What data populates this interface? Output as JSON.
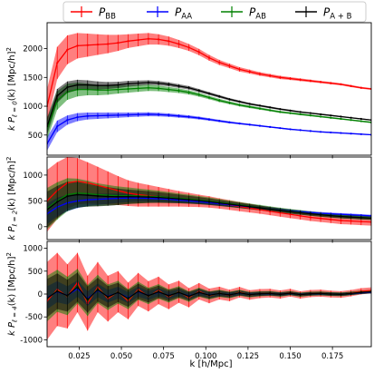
{
  "chart_data": [
    {
      "type": "line",
      "panel": "monopole",
      "ylabel_main": "k P",
      "ylabel_sub": "ℓ = 0",
      "ylabel_tail": "(k) [Mpc/h]",
      "ylabel_sup": "2",
      "ylim": [
        150,
        2450
      ],
      "yticks": [
        500,
        1000,
        1500,
        2000
      ],
      "xlim": [
        0.006,
        0.198
      ],
      "x": [
        0.006,
        0.012,
        0.018,
        0.024,
        0.03,
        0.036,
        0.042,
        0.048,
        0.054,
        0.06,
        0.066,
        0.072,
        0.078,
        0.084,
        0.09,
        0.096,
        0.102,
        0.108,
        0.114,
        0.12,
        0.126,
        0.132,
        0.138,
        0.144,
        0.15,
        0.156,
        0.162,
        0.168,
        0.174,
        0.18,
        0.186,
        0.192,
        0.198
      ],
      "series": [
        {
          "name": "P_BB",
          "color": "#ff0000",
          "values": [
            1000,
            1750,
            1980,
            2050,
            2060,
            2070,
            2080,
            2100,
            2130,
            2150,
            2170,
            2160,
            2130,
            2080,
            2020,
            1940,
            1840,
            1760,
            1700,
            1640,
            1600,
            1560,
            1530,
            1500,
            1480,
            1460,
            1440,
            1420,
            1400,
            1380,
            1350,
            1320,
            1300
          ],
          "err": [
            300,
            280,
            250,
            220,
            200,
            180,
            160,
            140,
            120,
            110,
            100,
            90,
            80,
            70,
            60,
            55,
            50,
            45,
            40,
            38,
            35,
            32,
            30,
            28,
            25,
            24,
            22,
            20,
            20,
            18,
            18,
            16,
            16
          ]
        },
        {
          "name": "P_AA",
          "color": "#0000ff",
          "values": [
            350,
            650,
            760,
            810,
            830,
            835,
            840,
            845,
            850,
            855,
            860,
            855,
            845,
            830,
            815,
            795,
            770,
            745,
            720,
            700,
            680,
            660,
            640,
            620,
            600,
            585,
            570,
            555,
            545,
            535,
            525,
            515,
            505
          ],
          "err": [
            120,
            100,
            80,
            70,
            60,
            55,
            50,
            45,
            40,
            38,
            35,
            32,
            30,
            28,
            26,
            24,
            22,
            20,
            18,
            16,
            15,
            14,
            13,
            12,
            11,
            10,
            10,
            9,
            9,
            8,
            8,
            8,
            8
          ]
        },
        {
          "name": "P_AB",
          "color": "#008000",
          "values": [
            600,
            1100,
            1250,
            1290,
            1290,
            1280,
            1280,
            1290,
            1300,
            1310,
            1320,
            1310,
            1290,
            1270,
            1240,
            1200,
            1150,
            1100,
            1060,
            1020,
            990,
            960,
            930,
            900,
            880,
            860,
            840,
            820,
            800,
            780,
            760,
            740,
            720
          ],
          "err": [
            180,
            160,
            140,
            120,
            100,
            90,
            80,
            70,
            65,
            60,
            55,
            50,
            45,
            40,
            36,
            34,
            30,
            28,
            26,
            24,
            22,
            20,
            18,
            18,
            16,
            16,
            15,
            14,
            14,
            13,
            12,
            12,
            12
          ]
        },
        {
          "name": "P_A+B",
          "color": "#000000",
          "values": [
            650,
            1180,
            1330,
            1370,
            1370,
            1360,
            1360,
            1370,
            1390,
            1400,
            1410,
            1400,
            1380,
            1350,
            1320,
            1270,
            1220,
            1170,
            1120,
            1080,
            1040,
            1010,
            980,
            950,
            925,
            900,
            880,
            860,
            840,
            820,
            800,
            780,
            760
          ],
          "err": [
            150,
            120,
            100,
            90,
            80,
            70,
            60,
            55,
            50,
            45,
            40,
            38,
            35,
            32,
            30,
            28,
            25,
            23,
            21,
            20,
            18,
            17,
            16,
            15,
            14,
            13,
            12,
            12,
            11,
            11,
            10,
            10,
            10
          ]
        }
      ]
    },
    {
      "type": "line",
      "panel": "quadrupole",
      "ylabel_main": "k P",
      "ylabel_sub": "ℓ = 2",
      "ylabel_tail": "(k) [Mpc/h]",
      "ylabel_sup": "2",
      "ylim": [
        -250,
        1350
      ],
      "yticks": [
        0,
        500,
        1000
      ],
      "xlim": [
        0.006,
        0.198
      ],
      "x": [
        0.006,
        0.012,
        0.018,
        0.024,
        0.03,
        0.036,
        0.042,
        0.048,
        0.054,
        0.06,
        0.066,
        0.072,
        0.078,
        0.084,
        0.09,
        0.096,
        0.102,
        0.108,
        0.114,
        0.12,
        0.126,
        0.132,
        0.138,
        0.144,
        0.15,
        0.156,
        0.162,
        0.168,
        0.174,
        0.18,
        0.186,
        0.192,
        0.198
      ],
      "series": [
        {
          "name": "P_BB",
          "color": "#ff0000",
          "values": [
            500,
            700,
            850,
            880,
            850,
            800,
            750,
            700,
            650,
            620,
            600,
            580,
            560,
            540,
            520,
            500,
            480,
            450,
            420,
            390,
            360,
            330,
            300,
            270,
            240,
            210,
            180,
            160,
            140,
            120,
            110,
            100,
            90
          ],
          "err": [
            600,
            550,
            500,
            450,
            400,
            360,
            320,
            280,
            250,
            230,
            210,
            190,
            170,
            150,
            135,
            120,
            110,
            100,
            95,
            90,
            85,
            80,
            78,
            76,
            74,
            72,
            70,
            70,
            70,
            70,
            70,
            70,
            70
          ]
        },
        {
          "name": "P_AA",
          "color": "#0000ff",
          "values": [
            250,
            380,
            460,
            500,
            520,
            530,
            540,
            550,
            555,
            555,
            550,
            540,
            530,
            515,
            500,
            485,
            465,
            445,
            425,
            405,
            385,
            365,
            345,
            325,
            305,
            290,
            275,
            260,
            250,
            240,
            230,
            220,
            210
          ],
          "err": [
            200,
            180,
            160,
            140,
            120,
            110,
            100,
            90,
            80,
            72,
            65,
            60,
            55,
            50,
            46,
            42,
            40,
            38,
            36,
            34,
            32,
            30,
            29,
            28,
            27,
            26,
            25,
            24,
            24,
            23,
            23,
            22,
            22
          ]
        },
        {
          "name": "P_AB",
          "color": "#008000",
          "values": [
            350,
            500,
            620,
            650,
            640,
            620,
            610,
            600,
            600,
            595,
            590,
            580,
            565,
            550,
            535,
            515,
            495,
            470,
            445,
            420,
            395,
            370,
            345,
            320,
            298,
            276,
            254,
            235,
            218,
            202,
            190,
            180,
            170
          ],
          "err": [
            400,
            360,
            320,
            280,
            250,
            220,
            200,
            180,
            160,
            145,
            130,
            118,
            106,
            95,
            86,
            78,
            72,
            66,
            62,
            58,
            55,
            52,
            50,
            48,
            46,
            45,
            44,
            43,
            42,
            42,
            41,
            41,
            40
          ]
        },
        {
          "name": "P_A+B",
          "color": "#000000",
          "values": [
            330,
            480,
            590,
            620,
            610,
            595,
            585,
            580,
            580,
            578,
            574,
            565,
            552,
            538,
            522,
            504,
            484,
            460,
            436,
            412,
            388,
            364,
            340,
            316,
            293,
            271,
            250,
            231,
            214,
            198,
            186,
            176,
            166
          ],
          "err": [
            350,
            310,
            280,
            250,
            220,
            200,
            180,
            160,
            140,
            126,
            114,
            104,
            94,
            85,
            77,
            70,
            64,
            59,
            55,
            52,
            49,
            46,
            44,
            42,
            41,
            40,
            39,
            38,
            38,
            37,
            37,
            36,
            36
          ]
        }
      ]
    },
    {
      "type": "line",
      "panel": "hexadecapole",
      "ylabel_main": "k P",
      "ylabel_sub": "ℓ = 4",
      "ylabel_tail": "(k) [Mpc/h]",
      "ylabel_sup": "2",
      "ylim": [
        -1150,
        1150
      ],
      "yticks": [
        -1000,
        -500,
        0,
        500,
        1000
      ],
      "xlim": [
        0.006,
        0.198
      ],
      "xticks": [
        0.025,
        0.05,
        0.075,
        0.1,
        0.125,
        0.15,
        0.175
      ],
      "xtick_labels": [
        "0.025",
        "0.050",
        "0.075",
        "0.100",
        "0.125",
        "0.150",
        "0.175"
      ],
      "xlabel": "k [h/Mpc]",
      "x": [
        0.006,
        0.012,
        0.018,
        0.024,
        0.03,
        0.036,
        0.042,
        0.048,
        0.054,
        0.06,
        0.066,
        0.072,
        0.078,
        0.084,
        0.09,
        0.096,
        0.102,
        0.108,
        0.114,
        0.12,
        0.126,
        0.132,
        0.138,
        0.144,
        0.15,
        0.156,
        0.162,
        0.168,
        0.174,
        0.18,
        0.186,
        0.192,
        0.198
      ],
      "series": [
        {
          "name": "P_BB",
          "color": "#ff0000",
          "values": [
            -150,
            100,
            -50,
            250,
            -200,
            150,
            -100,
            50,
            -150,
            100,
            -50,
            80,
            -60,
            50,
            -80,
            60,
            -40,
            20,
            -30,
            40,
            -20,
            10,
            20,
            -10,
            30,
            -20,
            10,
            20,
            0,
            -10,
            20,
            60,
            80
          ],
          "err": [
            850,
            800,
            700,
            650,
            600,
            550,
            500,
            450,
            400,
            360,
            330,
            300,
            270,
            240,
            210,
            180,
            160,
            140,
            125,
            115,
            105,
            100,
            95,
            90,
            85,
            80,
            78,
            76,
            74,
            72,
            70,
            68,
            66
          ]
        },
        {
          "name": "P_AA",
          "color": "#0000ff",
          "values": [
            -80,
            50,
            -30,
            120,
            -100,
            80,
            -50,
            30,
            -80,
            50,
            -30,
            40,
            -30,
            30,
            -40,
            30,
            -20,
            10,
            -15,
            20,
            -10,
            5,
            10,
            -5,
            15,
            -10,
            5,
            10,
            0,
            -5,
            10,
            30,
            40
          ],
          "err": [
            250,
            230,
            200,
            180,
            160,
            150,
            140,
            130,
            120,
            110,
            100,
            90,
            82,
            75,
            68,
            62,
            56,
            50,
            46,
            42,
            40,
            38,
            36,
            34,
            32,
            30,
            30,
            29,
            28,
            28,
            27,
            27,
            26
          ]
        },
        {
          "name": "P_AB",
          "color": "#008000",
          "values": [
            -100,
            70,
            -40,
            170,
            -140,
            110,
            -70,
            40,
            -110,
            70,
            -40,
            55,
            -40,
            40,
            -55,
            40,
            -30,
            15,
            -20,
            28,
            -14,
            7,
            14,
            -7,
            20,
            -14,
            7,
            14,
            0,
            -7,
            14,
            40,
            55
          ],
          "err": [
            500,
            460,
            420,
            380,
            340,
            310,
            280,
            250,
            220,
            200,
            180,
            160,
            145,
            130,
            115,
            100,
            90,
            80,
            72,
            66,
            60,
            56,
            52,
            50,
            48,
            46,
            44,
            43,
            42,
            41,
            40,
            40,
            39
          ]
        },
        {
          "name": "P_A+B",
          "color": "#000000",
          "values": [
            -90,
            60,
            -35,
            150,
            -120,
            95,
            -60,
            35,
            -95,
            60,
            -35,
            48,
            -35,
            35,
            -48,
            35,
            -25,
            12,
            -18,
            24,
            -12,
            6,
            12,
            -6,
            18,
            -12,
            6,
            12,
            0,
            -6,
            12,
            36,
            48
          ],
          "err": [
            420,
            390,
            350,
            320,
            290,
            260,
            235,
            210,
            185,
            168,
            150,
            135,
            122,
            110,
            98,
            86,
            77,
            69,
            62,
            57,
            52,
            48,
            45,
            43,
            41,
            39,
            38,
            37,
            36,
            35,
            35,
            34,
            34
          ]
        }
      ]
    }
  ],
  "legend": [
    {
      "base": "P",
      "sub": "BB",
      "color": "#ff0000"
    },
    {
      "base": "P",
      "sub": "AA",
      "color": "#0000ff"
    },
    {
      "base": "P",
      "sub": "AB",
      "color": "#008000"
    },
    {
      "base": "P",
      "sub": "A + B",
      "color": "#000000"
    }
  ]
}
